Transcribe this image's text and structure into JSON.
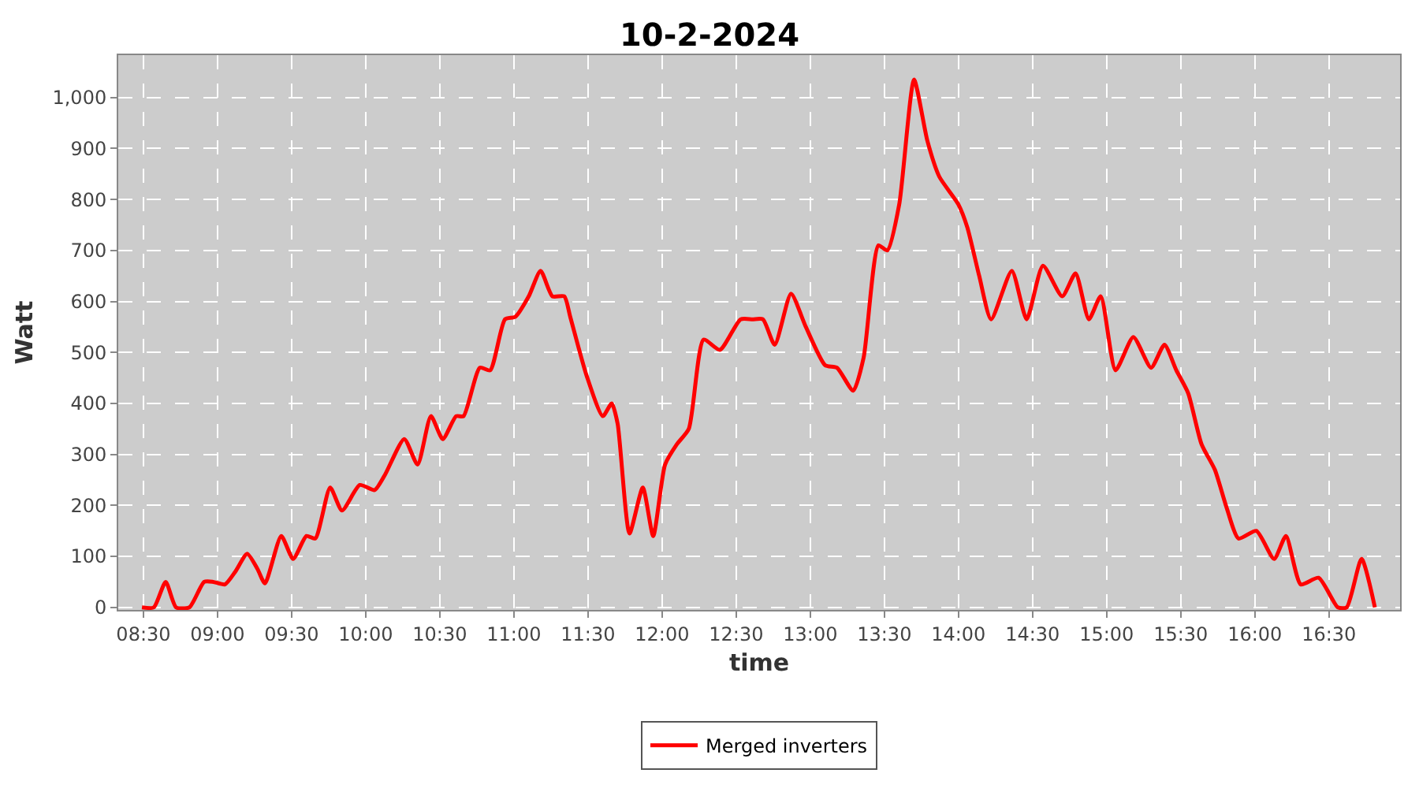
{
  "chart_data": {
    "type": "line",
    "title": "10-2-2024",
    "xlabel": "time",
    "ylabel": "Watt",
    "xlim": [
      8.33,
      16.98
    ],
    "ylim": [
      -5,
      1083
    ],
    "xticks": [
      {
        "value": 8.5,
        "label": "08:30"
      },
      {
        "value": 9,
        "label": "09:00"
      },
      {
        "value": 9.5,
        "label": "09:30"
      },
      {
        "value": 10,
        "label": "10:00"
      },
      {
        "value": 10.5,
        "label": "10:30"
      },
      {
        "value": 11,
        "label": "11:00"
      },
      {
        "value": 11.5,
        "label": "11:30"
      },
      {
        "value": 12,
        "label": "12:00"
      },
      {
        "value": 12.5,
        "label": "12:30"
      },
      {
        "value": 13,
        "label": "13:00"
      },
      {
        "value": 13.5,
        "label": "13:30"
      },
      {
        "value": 14,
        "label": "14:00"
      },
      {
        "value": 14.5,
        "label": "14:30"
      },
      {
        "value": 15,
        "label": "15:00"
      },
      {
        "value": 15.5,
        "label": "15:30"
      },
      {
        "value": 16,
        "label": "16:00"
      },
      {
        "value": 16.5,
        "label": "16:30"
      }
    ],
    "yticks": [
      0,
      100,
      200,
      300,
      400,
      500,
      600,
      700,
      800,
      900,
      {
        "value": 1000,
        "label": "1,000"
      }
    ],
    "grid": true,
    "legend": "bottom",
    "x": [
      8.49,
      8.57,
      8.65,
      8.72,
      8.81,
      8.91,
      8.97,
      9.05,
      9.12,
      9.2,
      9.27,
      9.32,
      9.43,
      9.51,
      9.6,
      9.66,
      9.76,
      9.84,
      9.96,
      10.06,
      10.13,
      10.26,
      10.35,
      10.44,
      10.52,
      10.61,
      10.66,
      10.77,
      10.84,
      10.94,
      11.01,
      11.1,
      11.18,
      11.26,
      11.34,
      11.38,
      11.49,
      11.6,
      11.66,
      11.7,
      11.78,
      11.87,
      11.94,
      12.02,
      12.1,
      12.18,
      12.28,
      12.39,
      12.53,
      12.61,
      12.68,
      12.76,
      12.87,
      12.97,
      13.1,
      13.18,
      13.29,
      13.36,
      13.46,
      13.52,
      13.6,
      13.7,
      13.79,
      13.87,
      14.0,
      14.06,
      14.14,
      14.22,
      14.36,
      14.46,
      14.57,
      14.7,
      14.79,
      14.88,
      14.96,
      15.06,
      15.18,
      15.3,
      15.39,
      15.47,
      15.55,
      15.64,
      15.73,
      15.81,
      15.89,
      16.01,
      16.13,
      16.21,
      16.31,
      16.43,
      16.56,
      16.62,
      16.72,
      16.81
    ],
    "series": [
      {
        "name": "Merged inverters",
        "color": "#ff0000",
        "values": [
          0,
          0,
          50,
          0,
          0,
          50,
          50,
          45,
          70,
          105,
          75,
          47,
          140,
          95,
          140,
          135,
          235,
          190,
          240,
          230,
          260,
          330,
          280,
          375,
          330,
          375,
          375,
          470,
          465,
          565,
          570,
          610,
          660,
          610,
          610,
          570,
          455,
          375,
          400,
          360,
          145,
          235,
          140,
          280,
          320,
          350,
          525,
          505,
          565,
          565,
          565,
          515,
          615,
          550,
          475,
          470,
          425,
          490,
          710,
          700,
          790,
          1035,
          915,
          845,
          790,
          745,
          650,
          565,
          660,
          565,
          670,
          610,
          655,
          565,
          610,
          465,
          530,
          470,
          515,
          465,
          420,
          320,
          270,
          195,
          135,
          150,
          95,
          140,
          45,
          58,
          0,
          0,
          95,
          0
        ]
      }
    ]
  }
}
